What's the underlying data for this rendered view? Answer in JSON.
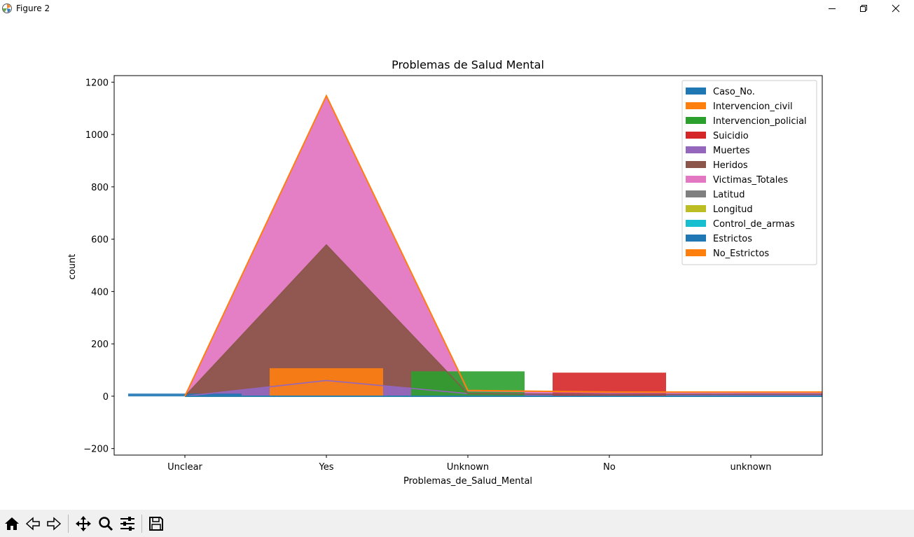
{
  "window": {
    "title": "Figure 2"
  },
  "chart_data": {
    "type": "area",
    "title": "Problemas de Salud Mental",
    "xlabel": "Problemas_de_Salud_Mental",
    "ylabel": "count",
    "categories": [
      "Unclear",
      "Yes",
      "Unknown",
      "No",
      "unknown"
    ],
    "ylim": [
      -225,
      1225
    ],
    "yticks": [
      -200,
      0,
      200,
      400,
      600,
      800,
      1000,
      1200
    ],
    "legend_position": "top-right",
    "series": [
      {
        "name": "Caso_No.",
        "color": "#1f77b4",
        "bar": 10,
        "values": [
          0,
          0,
          0,
          0,
          0
        ]
      },
      {
        "name": "Intervencion_civil",
        "color": "#ff7f0e",
        "bar": 107,
        "values": [
          0,
          0,
          0,
          0,
          0
        ]
      },
      {
        "name": "Intervencion_policial",
        "color": "#2ca02c",
        "bar": 95,
        "values": [
          0,
          0,
          0,
          0,
          0
        ]
      },
      {
        "name": "Suicidio",
        "color": "#d62728",
        "bar": 90,
        "values": [
          0,
          0,
          0,
          0,
          0
        ]
      },
      {
        "name": "Muertes",
        "color": "#9467bd",
        "values": [
          0,
          60,
          10,
          8,
          6
        ]
      },
      {
        "name": "Heridos",
        "color": "#8c564b",
        "values": [
          0,
          578,
          10,
          6,
          8
        ]
      },
      {
        "name": "Victimas_Totales",
        "color": "#e377c2",
        "values": [
          0,
          1148,
          20,
          14,
          14
        ]
      },
      {
        "name": "Latitud",
        "color": "#7f7f7f",
        "values": [
          0,
          0,
          0,
          0,
          0
        ]
      },
      {
        "name": "Longitud",
        "color": "#bcbd22",
        "values": [
          0,
          0,
          0,
          0,
          0
        ]
      },
      {
        "name": "Control_de_armas",
        "color": "#17becf",
        "values": [
          0,
          0,
          0,
          0,
          0
        ]
      },
      {
        "name": "Estrictos",
        "color": "#1f77b4",
        "values": [
          0,
          0,
          0,
          0,
          0
        ]
      },
      {
        "name": "No_Estrictos",
        "color": "#ff7f0e",
        "values": [
          0,
          1148,
          22,
          16,
          16
        ]
      }
    ]
  }
}
